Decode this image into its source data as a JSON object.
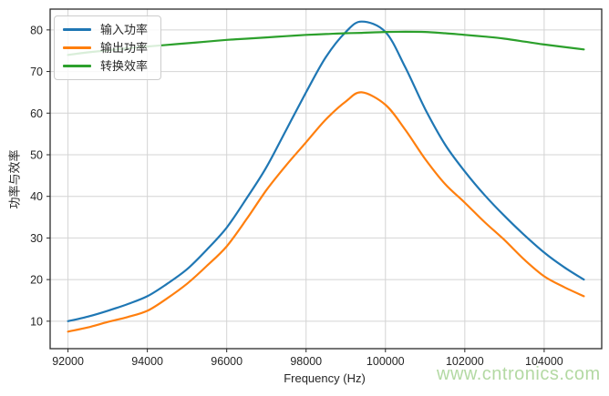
{
  "watermark": {
    "text": "www.cntronics.com",
    "color": "#b3d9a3"
  },
  "chart_data": {
    "type": "line",
    "title": "",
    "xlabel": "Frequency (Hz)",
    "ylabel": "功率与效率",
    "grid": true,
    "legend_position": "upper-left",
    "xlim": [
      91550,
      105450
    ],
    "ylim": [
      3.4,
      85
    ],
    "x_ticks": [
      92000,
      94000,
      96000,
      98000,
      100000,
      102000,
      104000
    ],
    "y_ticks": [
      10,
      20,
      30,
      40,
      50,
      60,
      70,
      80
    ],
    "x": [
      92000,
      92500,
      93000,
      93500,
      94000,
      94500,
      95000,
      95500,
      96000,
      96500,
      97000,
      97500,
      98000,
      98500,
      99000,
      99400,
      100000,
      100500,
      101000,
      101500,
      102000,
      102500,
      103000,
      103500,
      104000,
      104500,
      105000
    ],
    "series": [
      {
        "name": "输入功率",
        "color": "#1f77b4",
        "values": [
          10,
          11.1,
          12.5,
          14.1,
          16,
          19,
          22.5,
          27.2,
          32.5,
          39.5,
          47,
          56,
          65,
          73.5,
          79.5,
          82,
          79.5,
          71,
          61,
          52.5,
          46,
          40.3,
          35.3,
          30.7,
          26.5,
          23,
          20
        ]
      },
      {
        "name": "输出功率",
        "color": "#ff7f0e",
        "values": [
          7.5,
          8.5,
          9.8,
          11,
          12.5,
          15.5,
          19,
          23.3,
          28,
          34.5,
          41.5,
          47.5,
          53,
          58.5,
          62.8,
          65,
          62,
          56,
          49,
          43,
          38.5,
          33.8,
          29.5,
          24.8,
          20.8,
          18.2,
          16
        ]
      },
      {
        "name": "转换效率",
        "color": "#2ca02c",
        "values": [
          74,
          74.6,
          75.1,
          75.6,
          76,
          76.4,
          76.8,
          77.2,
          77.6,
          77.9,
          78.2,
          78.5,
          78.8,
          79,
          79.2,
          79.3,
          79.5,
          79.55,
          79.5,
          79.2,
          78.8,
          78.4,
          77.9,
          77.2,
          76.5,
          75.9,
          75.3
        ]
      }
    ]
  }
}
